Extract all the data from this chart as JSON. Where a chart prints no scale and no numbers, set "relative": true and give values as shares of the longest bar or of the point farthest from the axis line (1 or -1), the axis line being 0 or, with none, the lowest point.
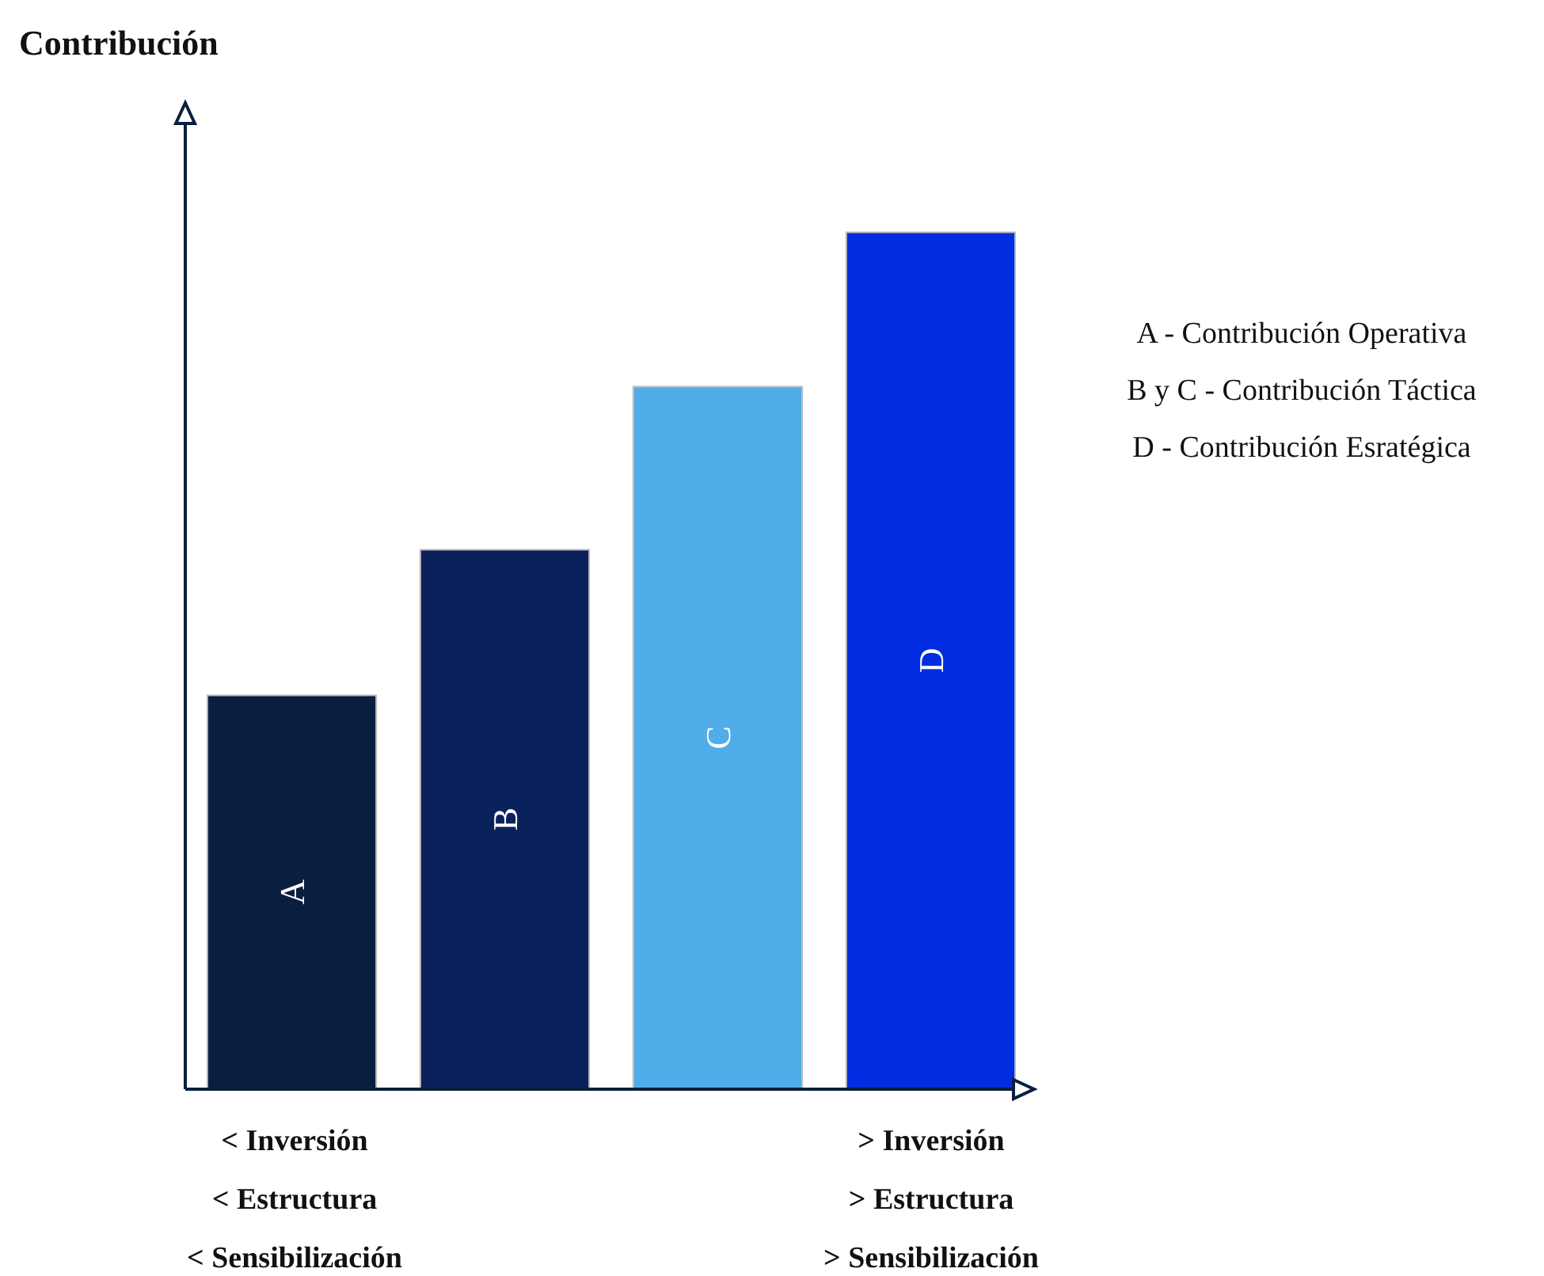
{
  "chart_data": {
    "type": "bar",
    "relative": true,
    "ylabel": "Contribución",
    "categories": [
      "A",
      "B",
      "C",
      "D"
    ],
    "values": [
      0.46,
      0.63,
      0.82,
      1
    ],
    "colors": [
      "#0a1f3f",
      "#0b215c",
      "#50ade9",
      "#022ce0"
    ],
    "grid": false,
    "annotations": [
      "A - Contribución Operativa",
      "B y C - Contribución Táctica",
      "D - Contribución Esratégica",
      "< Inversión",
      "< Estructura",
      "< Sensibilización",
      "> Inversión",
      "> Estructura",
      "> Sensibilización"
    ]
  }
}
